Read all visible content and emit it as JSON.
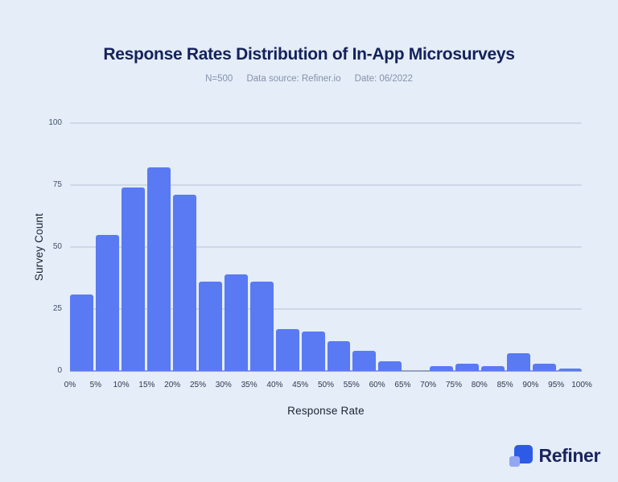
{
  "header": {
    "title": "Response Rates Distribution of In-App Microsurveys",
    "meta": {
      "n": "N=500",
      "source": "Data source: Refiner.io",
      "date": "Date: 06/2022"
    }
  },
  "chart_data": {
    "type": "bar",
    "subtype": "histogram",
    "title": "Response Rates Distribution of In-App Microsurveys",
    "bin_edges": [
      "0%",
      "5%",
      "10%",
      "15%",
      "20%",
      "25%",
      "30%",
      "35%",
      "40%",
      "45%",
      "50%",
      "55%",
      "60%",
      "65%",
      "70%",
      "75%",
      "80%",
      "85%",
      "90%",
      "95%",
      "100%"
    ],
    "values": [
      31,
      55,
      74,
      82,
      71,
      36,
      39,
      36,
      17,
      16,
      12,
      8,
      4,
      0,
      2,
      3,
      2,
      7,
      3,
      1
    ],
    "xlabel": "Response Rate",
    "ylabel": "Survey Count",
    "yticks": [
      0,
      25,
      50,
      75,
      100
    ],
    "ylim": [
      0,
      100
    ],
    "grid": "horizontal",
    "legend": "none",
    "bar_color": "#597af2",
    "gridline_color": "#cdd7e6",
    "baseline_color": "#94a2b9",
    "background_color": "#e4edf8",
    "title_color": "#14215b",
    "subtitle_color": "#8592ab"
  },
  "brand": {
    "name": "Refiner",
    "icon": "two-overlapping-squares-icon",
    "icon_primary": "#2e5be6",
    "icon_secondary": "#93a7f1",
    "text_color": "#19245e"
  }
}
